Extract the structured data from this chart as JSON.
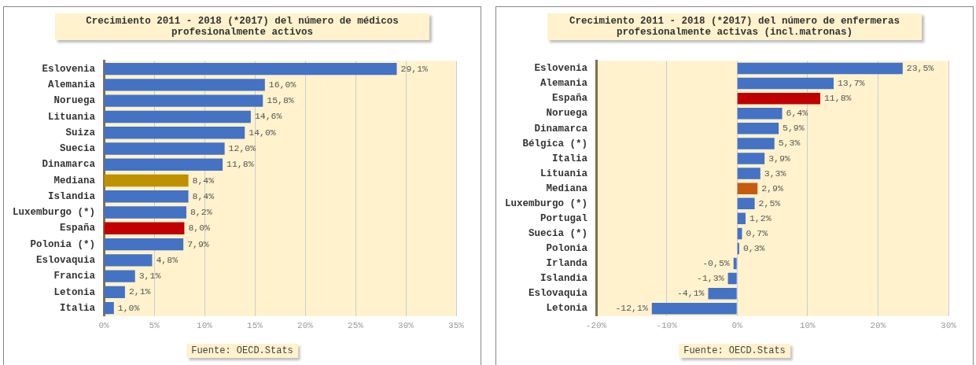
{
  "chart_data": [
    {
      "type": "bar",
      "orientation": "horizontal",
      "title": "Crecimiento 2011 - 2018 (*2017) del número de médicos profesionalmente activos",
      "categories": [
        "Eslovenia",
        "Alemania",
        "Noruega",
        "Lituania",
        "Suiza",
        "Suecia",
        "Dinamarca",
        "Mediana",
        "Islandia",
        "Luxemburgo (*)",
        "España",
        "Polonia (*)",
        "Eslovaquia",
        "Francia",
        "Letonia",
        "Italia"
      ],
      "values": [
        29.1,
        16.0,
        15.8,
        14.6,
        14.0,
        12.0,
        11.8,
        8.4,
        8.4,
        8.2,
        8.0,
        7.9,
        4.8,
        3.1,
        2.1,
        1.0
      ],
      "colors": [
        "#4472c4",
        "#4472c4",
        "#4472c4",
        "#4472c4",
        "#4472c4",
        "#4472c4",
        "#4472c4",
        "#bf9000",
        "#4472c4",
        "#4472c4",
        "#c00000",
        "#4472c4",
        "#4472c4",
        "#4472c4",
        "#4472c4",
        "#4472c4"
      ],
      "value_labels": [
        "29,1%",
        "16,0%",
        "15,8%",
        "14,6%",
        "14,0%",
        "12,0%",
        "11,8%",
        "8,4%",
        "8,4%",
        "8,2%",
        "8,0%",
        "7,9%",
        "4,8%",
        "3,1%",
        "2,1%",
        "1,0%"
      ],
      "xlim": [
        0,
        35
      ],
      "xticks": [
        {
          "value": 0,
          "label": "0%"
        },
        {
          "value": 5,
          "label": "5%"
        },
        {
          "value": 10,
          "label": "10%"
        },
        {
          "value": 15,
          "label": "15%"
        },
        {
          "value": 20,
          "label": "20%"
        },
        {
          "value": 25,
          "label": "25%"
        },
        {
          "value": 30,
          "label": "30%"
        },
        {
          "value": 35,
          "label": "35%"
        }
      ],
      "grid": "x",
      "legend": false,
      "annotations": [
        "Fuente: OECD.Stats"
      ]
    },
    {
      "type": "bar",
      "orientation": "horizontal",
      "title": "Crecimiento 2011 - 2018 (*2017) del número de enfermeras profesionalmente activas (incl.matronas)",
      "categories": [
        "Eslovenia",
        "Alemania",
        "España",
        "Noruega",
        "Dinamarca",
        "Bélgica (*)",
        "Italia",
        "Lituania",
        "Mediana",
        "Luxemburgo (*)",
        "Portugal",
        "Suecia (*)",
        "Polonia",
        "Irlanda",
        "Islandia",
        "Eslovaquia",
        "Letonia"
      ],
      "values": [
        23.5,
        13.7,
        11.8,
        6.4,
        5.9,
        5.3,
        3.9,
        3.3,
        2.9,
        2.5,
        1.2,
        0.7,
        0.3,
        -0.5,
        -1.3,
        -4.1,
        -12.1
      ],
      "colors": [
        "#4472c4",
        "#4472c4",
        "#c00000",
        "#4472c4",
        "#4472c4",
        "#4472c4",
        "#4472c4",
        "#4472c4",
        "#c55a11",
        "#4472c4",
        "#4472c4",
        "#4472c4",
        "#4472c4",
        "#4472c4",
        "#4472c4",
        "#4472c4",
        "#4472c4"
      ],
      "value_labels": [
        "23,5%",
        "13,7%",
        "11,8%",
        "6,4%",
        "5,9%",
        "5,3%",
        "3,9%",
        "3,3%",
        "2,9%",
        "2,5%",
        "1,2%",
        "0,7%",
        "0,3%",
        "-0,5%",
        "-1,3%",
        "-4,1%",
        "-12,1%"
      ],
      "xlim": [
        -20,
        30
      ],
      "xticks": [
        {
          "value": -20,
          "label": "-20%"
        },
        {
          "value": -10,
          "label": "-10%"
        },
        {
          "value": 0,
          "label": "0%"
        },
        {
          "value": 10,
          "label": "10%"
        },
        {
          "value": 20,
          "label": "20%"
        },
        {
          "value": 30,
          "label": "30%"
        }
      ],
      "grid": "x",
      "legend": false,
      "annotations": [
        "Fuente: OECD.Stats"
      ]
    }
  ]
}
